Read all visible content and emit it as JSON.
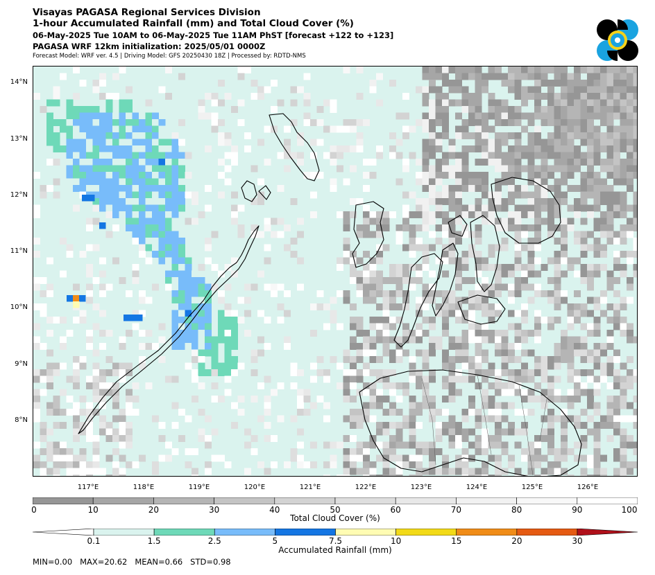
{
  "header": {
    "line1": "Visayas PAGASA Regional Services Division",
    "line2": "1-hour Accumulated Rainfall (mm) and Total Cloud Cover (%)",
    "line3": "06-May-2025 Tue 10AM to 06-May-2025 Tue 11AM PhST [forecast +122 to +123]",
    "line4": "PAGASA WRF 12km initialization: 2025/05/01 0000Z",
    "line5": "Forecast Model: WRF ver. 4.5 | Driving Model: GFS 20250430 18Z | Processed by: RDTD-NMS"
  },
  "axes": {
    "lat_labels": [
      "14°N",
      "13°N",
      "12°N",
      "11°N",
      "10°N",
      "9°N",
      "8°N"
    ],
    "lon_labels": [
      "117°E",
      "118°E",
      "119°E",
      "120°E",
      "121°E",
      "122°E",
      "123°E",
      "124°E",
      "125°E",
      "126°E"
    ],
    "lat_range": [
      7.0,
      14.3
    ],
    "lon_range": [
      116.0,
      126.9
    ]
  },
  "cloud_cover": {
    "label": "Total Cloud Cover (%)",
    "ticks": [
      "0",
      "10",
      "20",
      "30",
      "40",
      "50",
      "60",
      "70",
      "80",
      "90",
      "100"
    ],
    "colors": [
      "#969696",
      "#a6a6a6",
      "#b5b5b5",
      "#c4c4c4",
      "#d3d3d3",
      "#dedede",
      "#e8e8e8",
      "#f1f1f1",
      "#f8f8f8",
      "#ffffff"
    ]
  },
  "rainfall": {
    "label": "Accumulated Rainfall (mm)",
    "ticks": [
      "0.1",
      "1.5",
      "2.5",
      "5",
      "7.5",
      "10",
      "15",
      "20",
      "30"
    ],
    "colors": [
      "#daf3ee",
      "#6ed9b8",
      "#78bcfa",
      "#1476e3",
      "#fffcb3",
      "#f2da18",
      "#f08c18",
      "#e55a12",
      "#b0101a"
    ]
  },
  "stats": {
    "text": "MIN=0.00   MAX=20.62   MEAN=0.66   STD=0.98"
  },
  "colors": {
    "coastline": "#000000",
    "border": "#555555",
    "cloud_dark": "#8f8f8f",
    "light_rain": "#daf3ee",
    "moderate_rain": "#6ed9b8",
    "heavy_rain": "#78bcfa",
    "intense_rain": "#1476e3"
  }
}
